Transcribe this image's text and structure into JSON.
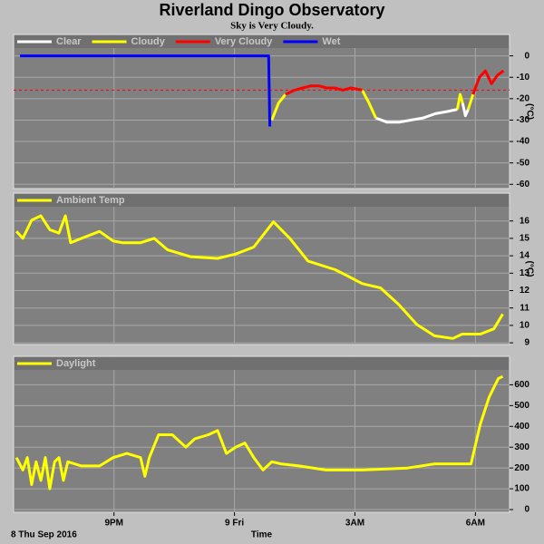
{
  "header": {
    "title": "Riverland Dingo Observatory",
    "subtitle": "Sky is Very Cloudy."
  },
  "chart_data": [
    {
      "type": "line",
      "ylabel": "(°C)",
      "ylim": [
        -62,
        10
      ],
      "yticks": [
        0,
        -10,
        -20,
        -30,
        -40,
        -50,
        -60
      ],
      "threshold": {
        "value": -16,
        "color": "#ff0000"
      },
      "grid": true,
      "x": [
        18.66,
        24.85,
        24.88,
        24.93,
        25.1,
        25.27,
        25.5,
        25.7,
        25.9,
        26.1,
        26.3,
        26.5,
        26.7,
        26.9,
        27.18,
        27.35,
        27.52,
        27.8,
        28.1,
        28.4,
        28.7,
        29.0,
        29.3,
        29.55,
        29.62,
        29.68,
        29.75,
        29.82,
        29.94,
        30.1,
        30.25,
        30.4,
        30.55,
        30.7
      ],
      "series": [
        {
          "name": "Clear",
          "color": "#ffffff",
          "values": [
            null,
            null,
            null,
            null,
            null,
            null,
            null,
            null,
            null,
            null,
            null,
            null,
            null,
            null,
            null,
            null,
            -29,
            -31,
            -31,
            -30,
            -29,
            -27,
            -26,
            -25,
            null,
            -22,
            -28,
            -25,
            null,
            null,
            null,
            null,
            null,
            null
          ]
        },
        {
          "name": "Cloudy",
          "color": "#ffff00",
          "values": [
            null,
            null,
            null,
            -30,
            -22,
            -18,
            null,
            null,
            null,
            null,
            null,
            null,
            null,
            null,
            -16,
            -22,
            -29,
            null,
            null,
            null,
            null,
            null,
            null,
            -25,
            -18,
            -22,
            null,
            -25,
            -18,
            null,
            null,
            null,
            null,
            null
          ]
        },
        {
          "name": "Very Cloudy",
          "color": "#ff0000",
          "values": [
            null,
            null,
            null,
            null,
            null,
            -18,
            -16,
            -15,
            -14,
            -14,
            -15,
            -15,
            -16,
            -15,
            -16,
            null,
            null,
            null,
            null,
            null,
            null,
            null,
            null,
            null,
            null,
            null,
            null,
            null,
            -18,
            -10,
            -7,
            -13,
            -9,
            -7
          ]
        },
        {
          "name": "Wet",
          "color": "#0000ff",
          "values": [
            0,
            0,
            -33,
            null,
            null,
            null,
            null,
            null,
            null,
            null,
            null,
            null,
            null,
            null,
            null,
            null,
            null,
            null,
            null,
            null,
            null,
            null,
            null,
            null,
            null,
            null,
            null,
            null,
            null,
            null,
            null,
            null,
            null,
            null
          ]
        }
      ]
    },
    {
      "type": "line",
      "ylabel": "(°C)",
      "ylim": [
        8.9,
        17.6
      ],
      "yticks": [
        9,
        10,
        11,
        12,
        13,
        14,
        15,
        16
      ],
      "grid": true,
      "x": [
        18.57,
        18.73,
        18.95,
        19.18,
        19.4,
        19.63,
        19.79,
        19.92,
        20.19,
        20.64,
        20.98,
        21.21,
        21.66,
        22.0,
        22.33,
        22.9,
        23.58,
        24.03,
        24.48,
        24.97,
        25.38,
        25.83,
        26.51,
        26.85,
        27.18,
        27.64,
        28.09,
        28.54,
        28.98,
        29.44,
        29.67,
        30.12,
        30.46,
        30.68
      ],
      "series": [
        {
          "name": "Ambient Temp",
          "color": "#ffff00",
          "values": [
            15.4,
            15.0,
            16.05,
            16.3,
            15.5,
            15.3,
            16.3,
            14.75,
            15.0,
            15.4,
            14.85,
            14.75,
            14.75,
            15.0,
            14.35,
            13.95,
            13.85,
            14.1,
            14.5,
            15.95,
            15.0,
            13.7,
            13.2,
            12.8,
            12.4,
            12.15,
            11.2,
            10.05,
            9.4,
            9.25,
            9.5,
            9.5,
            9.8,
            10.65
          ]
        }
      ]
    },
    {
      "type": "line",
      "ylim": [
        -13,
        737
      ],
      "yticks": [
        0,
        100,
        200,
        300,
        400,
        500,
        600
      ],
      "grid": true,
      "xlim": [
        18.5,
        30.85
      ],
      "xticks": [
        {
          "value": 21,
          "label": "9PM"
        },
        {
          "value": 24,
          "label": "9 Fri"
        },
        {
          "value": 27,
          "label": "3AM"
        },
        {
          "value": 30,
          "label": "6AM"
        }
      ],
      "xlabel": "Time",
      "x_start_label": "8 Thu Sep 2016",
      "x": [
        18.57,
        18.73,
        18.84,
        18.95,
        19.06,
        19.18,
        19.29,
        19.4,
        19.52,
        19.63,
        19.74,
        19.85,
        20.19,
        20.64,
        20.98,
        21.32,
        21.66,
        21.77,
        21.88,
        22.11,
        22.45,
        22.79,
        23.01,
        23.35,
        23.58,
        23.8,
        24.03,
        24.26,
        24.48,
        24.71,
        24.93,
        25.16,
        25.61,
        26.28,
        27.18,
        28.31,
        28.99,
        29.44,
        29.89,
        30.12,
        30.34,
        30.57,
        30.68
      ],
      "series": [
        {
          "name": "Daylight",
          "color": "#ffff00",
          "values": [
            250,
            190,
            250,
            120,
            230,
            140,
            250,
            100,
            230,
            250,
            140,
            230,
            210,
            210,
            250,
            270,
            250,
            160,
            250,
            360,
            360,
            300,
            340,
            360,
            380,
            270,
            300,
            320,
            250,
            190,
            230,
            220,
            210,
            190,
            190,
            200,
            220,
            220,
            220,
            410,
            540,
            630,
            640
          ]
        }
      ]
    }
  ]
}
